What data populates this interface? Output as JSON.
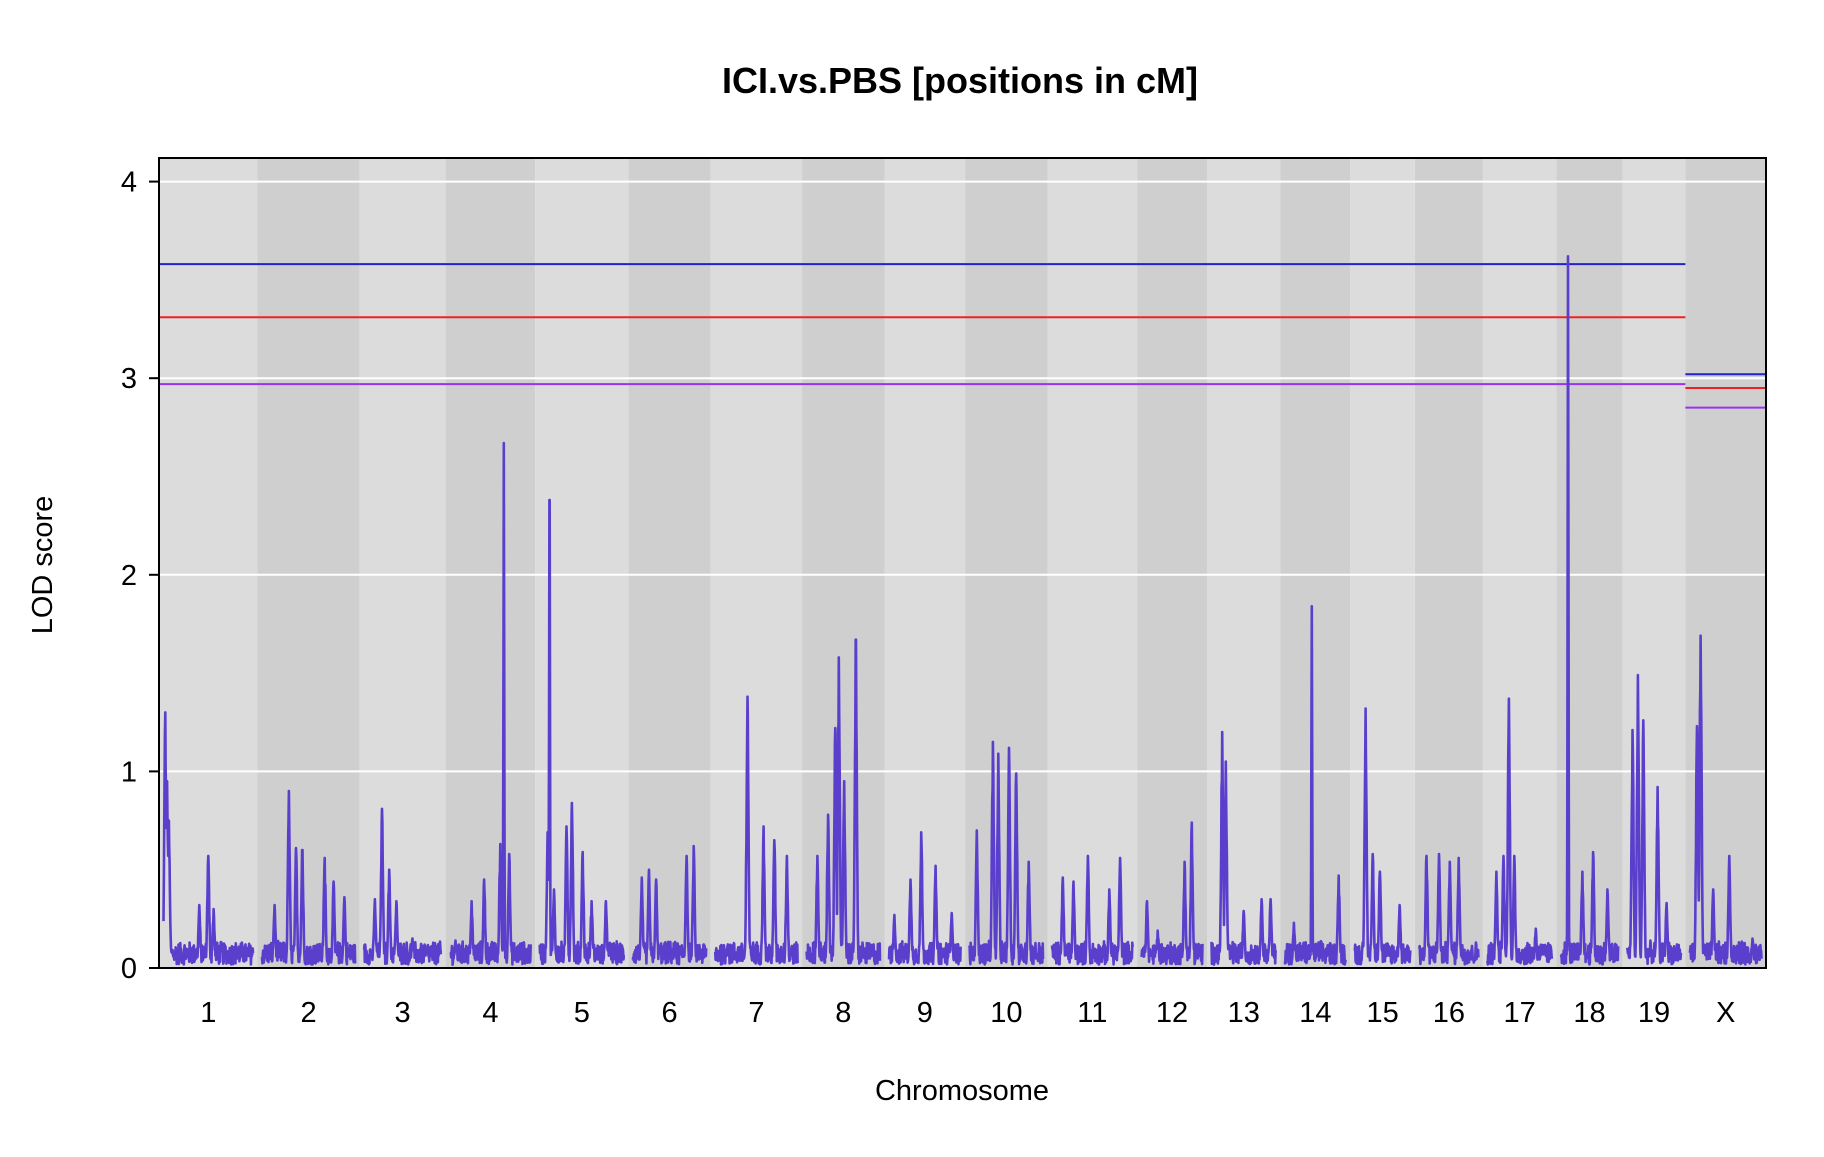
{
  "chart_data": {
    "type": "line",
    "title": "ICI.vs.PBS [positions in cM]",
    "xlabel": "Chromosome",
    "ylabel": "LOD score",
    "ylim": [
      0,
      4.12
    ],
    "y_ticks": [
      0,
      1,
      2,
      3,
      4
    ],
    "y_tick_labels": [
      "0",
      "1",
      "2",
      "3",
      "4"
    ],
    "grid": true,
    "background_bands": [
      "#dcdcdc",
      "#cfcfcf"
    ],
    "colors": {
      "lod_curve": "#5a3fcc",
      "threshold_high": "#2222cc",
      "threshold_mid": "#ee2222",
      "threshold_low": "#9933ee",
      "gridline": "#ffffff"
    },
    "chromosomes": [
      {
        "name": "1",
        "length": 100,
        "peaks": [
          [
            2,
            1.3
          ],
          [
            4,
            0.95
          ],
          [
            6,
            0.75
          ],
          [
            40,
            0.32
          ],
          [
            50,
            0.57
          ],
          [
            56,
            0.3
          ]
        ]
      },
      {
        "name": "2",
        "length": 104,
        "peaks": [
          [
            14,
            0.32
          ],
          [
            30,
            0.9
          ],
          [
            38,
            0.61
          ],
          [
            45,
            0.6
          ],
          [
            70,
            0.56
          ],
          [
            80,
            0.44
          ],
          [
            92,
            0.36
          ]
        ]
      },
      {
        "name": "3",
        "length": 86,
        "peaks": [
          [
            12,
            0.35
          ],
          [
            20,
            0.81
          ],
          [
            28,
            0.5
          ],
          [
            36,
            0.34
          ],
          [
            54,
            0.15
          ]
        ]
      },
      {
        "name": "4",
        "length": 90,
        "peaks": [
          [
            6,
            0.14
          ],
          [
            24,
            0.34
          ],
          [
            38,
            0.45
          ],
          [
            56,
            0.63
          ],
          [
            60,
            2.67
          ],
          [
            66,
            0.58
          ]
        ]
      },
      {
        "name": "5",
        "length": 94,
        "peaks": [
          [
            9,
            0.69
          ],
          [
            11,
            2.38
          ],
          [
            16,
            0.4
          ],
          [
            30,
            0.72
          ],
          [
            36,
            0.84
          ],
          [
            48,
            0.59
          ],
          [
            58,
            0.34
          ],
          [
            74,
            0.34
          ]
        ]
      },
      {
        "name": "6",
        "length": 82,
        "peaks": [
          [
            10,
            0.46
          ],
          [
            18,
            0.5
          ],
          [
            26,
            0.45
          ],
          [
            60,
            0.57
          ],
          [
            68,
            0.62
          ]
        ]
      },
      {
        "name": "7",
        "length": 92,
        "peaks": [
          [
            14,
            0.12
          ],
          [
            36,
            1.38
          ],
          [
            54,
            0.72
          ],
          [
            66,
            0.65
          ],
          [
            80,
            0.57
          ]
        ]
      },
      {
        "name": "8",
        "length": 82,
        "peaks": [
          [
            12,
            0.57
          ],
          [
            24,
            0.78
          ],
          [
            32,
            1.22
          ],
          [
            36,
            1.58
          ],
          [
            42,
            0.95
          ],
          [
            55,
            1.67
          ]
        ]
      },
      {
        "name": "9",
        "length": 80,
        "peaks": [
          [
            6,
            0.27
          ],
          [
            24,
            0.45
          ],
          [
            36,
            0.69
          ],
          [
            52,
            0.52
          ],
          [
            70,
            0.28
          ]
        ]
      },
      {
        "name": "10",
        "length": 82,
        "peaks": [
          [
            8,
            0.7
          ],
          [
            26,
            1.15
          ],
          [
            32,
            1.09
          ],
          [
            44,
            1.12
          ],
          [
            52,
            0.99
          ],
          [
            66,
            0.54
          ]
        ]
      },
      {
        "name": "11",
        "length": 90,
        "peaks": [
          [
            12,
            0.46
          ],
          [
            24,
            0.44
          ],
          [
            40,
            0.57
          ],
          [
            64,
            0.4
          ],
          [
            76,
            0.56
          ]
        ]
      },
      {
        "name": "12",
        "length": 68,
        "peaks": [
          [
            6,
            0.34
          ],
          [
            18,
            0.19
          ],
          [
            48,
            0.54
          ],
          [
            56,
            0.74
          ]
        ]
      },
      {
        "name": "13",
        "length": 72,
        "peaks": [
          [
            12,
            1.2
          ],
          [
            16,
            1.05
          ],
          [
            36,
            0.29
          ],
          [
            56,
            0.35
          ],
          [
            66,
            0.35
          ]
        ]
      },
      {
        "name": "14",
        "length": 68,
        "peaks": [
          [
            10,
            0.23
          ],
          [
            30,
            1.84
          ],
          [
            48,
            0.1
          ],
          [
            60,
            0.47
          ]
        ]
      },
      {
        "name": "15",
        "length": 62,
        "peaks": [
          [
            12,
            1.32
          ],
          [
            20,
            0.58
          ],
          [
            28,
            0.49
          ],
          [
            50,
            0.32
          ]
        ]
      },
      {
        "name": "16",
        "length": 66,
        "peaks": [
          [
            8,
            0.57
          ],
          [
            22,
            0.58
          ],
          [
            34,
            0.54
          ],
          [
            44,
            0.56
          ]
        ]
      },
      {
        "name": "17",
        "length": 72,
        "peaks": [
          [
            10,
            0.49
          ],
          [
            18,
            0.57
          ],
          [
            24,
            1.37
          ],
          [
            30,
            0.57
          ],
          [
            54,
            0.2
          ]
        ]
      },
      {
        "name": "18",
        "length": 64,
        "peaks": [
          [
            8,
            3.62
          ],
          [
            24,
            0.49
          ],
          [
            36,
            0.59
          ],
          [
            52,
            0.4
          ]
        ]
      },
      {
        "name": "19",
        "length": 60,
        "peaks": [
          [
            6,
            1.21
          ],
          [
            12,
            1.49
          ],
          [
            18,
            1.26
          ],
          [
            34,
            0.92
          ],
          [
            44,
            0.33
          ]
        ]
      },
      {
        "name": "X",
        "length": 80,
        "peaks": [
          [
            8,
            1.23
          ],
          [
            12,
            1.69
          ],
          [
            26,
            0.4
          ],
          [
            44,
            0.57
          ],
          [
            70,
            0.15
          ]
        ]
      }
    ],
    "thresholds_autosome": [
      {
        "name": "high",
        "value": 3.58,
        "color": "#2222cc"
      },
      {
        "name": "mid",
        "value": 3.31,
        "color": "#ee2222"
      },
      {
        "name": "low",
        "value": 2.97,
        "color": "#9933ee"
      }
    ],
    "thresholds_x": [
      {
        "name": "high",
        "value": 3.02,
        "color": "#2222cc"
      },
      {
        "name": "mid",
        "value": 2.95,
        "color": "#ee2222"
      },
      {
        "name": "low",
        "value": 2.85,
        "color": "#9933ee"
      }
    ]
  }
}
